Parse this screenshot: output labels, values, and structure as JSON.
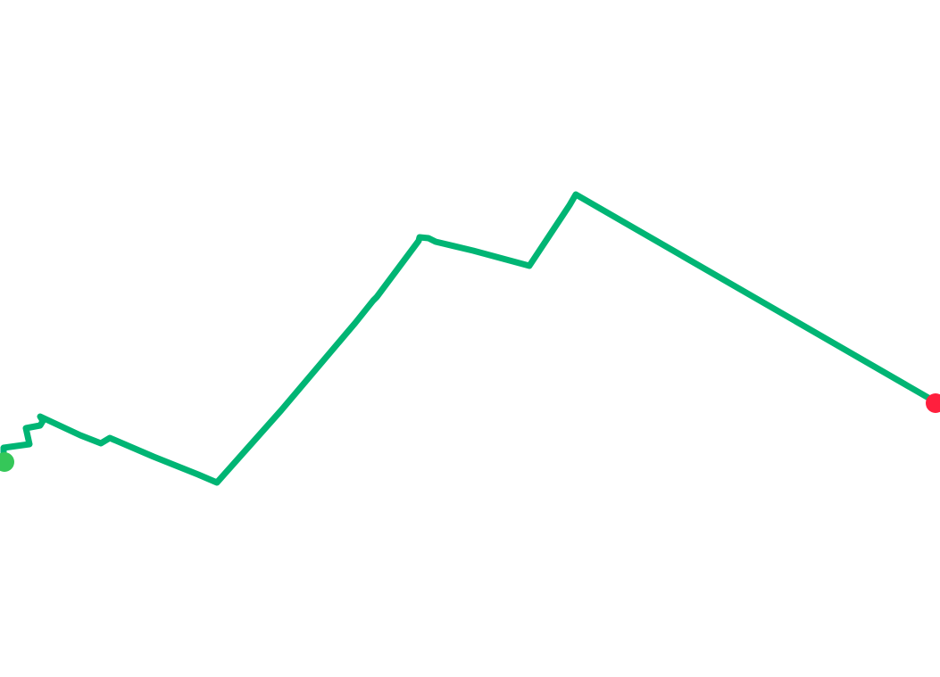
{
  "map": {
    "background_color": "#ffffff",
    "route": {
      "color": "#00b574",
      "start_marker": {
        "icon": "start-point-dot",
        "color": "#35c759"
      },
      "end_marker": {
        "icon": "end-point-dot",
        "color": "#ff1f3d"
      }
    }
  }
}
